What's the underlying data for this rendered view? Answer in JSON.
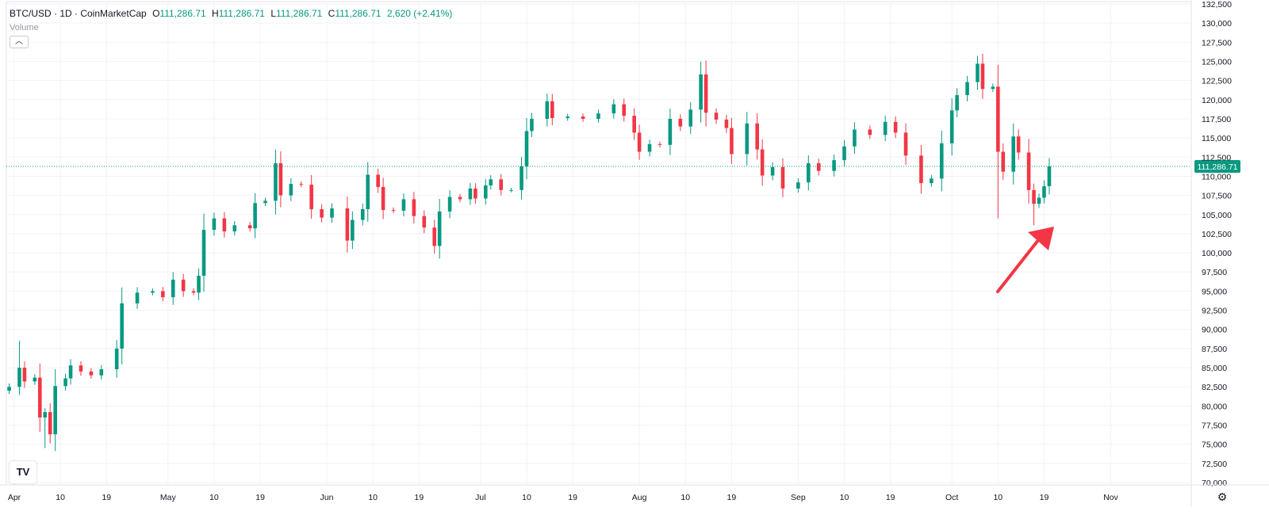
{
  "header": {
    "symbol": "BTC/USD · 1D · CoinMarketCap",
    "o_key": "O",
    "o_val": "111,286.71",
    "h_key": "H",
    "h_val": "111,286.71",
    "l_key": "L",
    "l_val": "111,286.71",
    "c_key": "C",
    "c_val": "111,286.71",
    "change": "2,620 (+2.41%)",
    "volume_label": "Volume",
    "collapse_icon": "chevron-up-icon"
  },
  "logo_text": "TV",
  "settings_icon": "gear-icon",
  "colors": {
    "up": "#089981",
    "down": "#f23645",
    "grid": "#f0f3fa",
    "axis_text": "#131722",
    "price_line": "#089981",
    "annotation": "#f23645"
  },
  "chart_data": {
    "type": "candlestick",
    "title": "BTC/USD · 1D · CoinMarketCap",
    "y_ticks": [
      70000,
      72500,
      75000,
      77500,
      80000,
      82500,
      85000,
      87500,
      90000,
      92500,
      95000,
      97500,
      100000,
      102500,
      105000,
      107500,
      110000,
      112500,
      115000,
      117500,
      120000,
      122500,
      125000,
      127500,
      130000,
      132500
    ],
    "y_tick_labels": [
      "70,000",
      "72,500",
      "75,000",
      "77,500",
      "80,000",
      "82,500",
      "85,000",
      "87,500",
      "90,000",
      "92,500",
      "95,000",
      "97,500",
      "100,000",
      "102,500",
      "105,000",
      "107,500",
      "110,000",
      "112,500",
      "115,000",
      "117,500",
      "120,000",
      "122,500",
      "125,000",
      "127,500",
      "130,000",
      "132,500"
    ],
    "x_ticks": [
      {
        "date": "2025-04-01",
        "label": "Apr"
      },
      {
        "date": "2025-04-10",
        "label": "10"
      },
      {
        "date": "2025-04-19",
        "label": "19"
      },
      {
        "date": "2025-05-01",
        "label": "May"
      },
      {
        "date": "2025-05-10",
        "label": "10"
      },
      {
        "date": "2025-05-19",
        "label": "19"
      },
      {
        "date": "2025-06-01",
        "label": "Jun"
      },
      {
        "date": "2025-06-10",
        "label": "10"
      },
      {
        "date": "2025-06-19",
        "label": "19"
      },
      {
        "date": "2025-07-01",
        "label": "Jul"
      },
      {
        "date": "2025-07-10",
        "label": "10"
      },
      {
        "date": "2025-07-19",
        "label": "19"
      },
      {
        "date": "2025-08-01",
        "label": "Aug"
      },
      {
        "date": "2025-08-10",
        "label": "10"
      },
      {
        "date": "2025-08-19",
        "label": "19"
      },
      {
        "date": "2025-09-01",
        "label": "Sep"
      },
      {
        "date": "2025-09-10",
        "label": "10"
      },
      {
        "date": "2025-09-19",
        "label": "19"
      },
      {
        "date": "2025-10-01",
        "label": "Oct"
      },
      {
        "date": "2025-10-10",
        "label": "10"
      },
      {
        "date": "2025-10-19",
        "label": "19"
      },
      {
        "date": "2025-11-01",
        "label": "Nov"
      }
    ],
    "last_price": 111286.71,
    "last_price_label": "111,286.71",
    "closes": [
      {
        "date": "2025-03-31",
        "close": 82500
      },
      {
        "date": "2025-04-02",
        "close": 85000
      },
      {
        "date": "2025-04-03",
        "close": 83200
      },
      {
        "date": "2025-04-05",
        "close": 83700
      },
      {
        "date": "2025-04-06",
        "close": 78500
      },
      {
        "date": "2025-04-07",
        "close": 79200
      },
      {
        "date": "2025-04-08",
        "close": 76300
      },
      {
        "date": "2025-04-09",
        "close": 82600
      },
      {
        "date": "2025-04-11",
        "close": 83600
      },
      {
        "date": "2025-04-12",
        "close": 85300
      },
      {
        "date": "2025-04-14",
        "close": 84500
      },
      {
        "date": "2025-04-16",
        "close": 84000
      },
      {
        "date": "2025-04-18",
        "close": 84800
      },
      {
        "date": "2025-04-21",
        "close": 87500
      },
      {
        "date": "2025-04-22",
        "close": 93400
      },
      {
        "date": "2025-04-25",
        "close": 94800
      },
      {
        "date": "2025-04-28",
        "close": 95000
      },
      {
        "date": "2025-04-30",
        "close": 94200
      },
      {
        "date": "2025-05-02",
        "close": 96500
      },
      {
        "date": "2025-05-04",
        "close": 95000
      },
      {
        "date": "2025-05-06",
        "close": 94800
      },
      {
        "date": "2025-05-07",
        "close": 97000
      },
      {
        "date": "2025-05-08",
        "close": 103000
      },
      {
        "date": "2025-05-10",
        "close": 104500
      },
      {
        "date": "2025-05-12",
        "close": 102800
      },
      {
        "date": "2025-05-14",
        "close": 103600
      },
      {
        "date": "2025-05-17",
        "close": 103200
      },
      {
        "date": "2025-05-18",
        "close": 106500
      },
      {
        "date": "2025-05-20",
        "close": 106800
      },
      {
        "date": "2025-05-22",
        "close": 111700
      },
      {
        "date": "2025-05-23",
        "close": 107500
      },
      {
        "date": "2025-05-25",
        "close": 109000
      },
      {
        "date": "2025-05-27",
        "close": 108900
      },
      {
        "date": "2025-05-29",
        "close": 105700
      },
      {
        "date": "2025-05-31",
        "close": 104600
      },
      {
        "date": "2025-06-02",
        "close": 105800
      },
      {
        "date": "2025-06-05",
        "close": 101600
      },
      {
        "date": "2025-06-06",
        "close": 104300
      },
      {
        "date": "2025-06-08",
        "close": 105700
      },
      {
        "date": "2025-06-09",
        "close": 110200
      },
      {
        "date": "2025-06-11",
        "close": 108600
      },
      {
        "date": "2025-06-12",
        "close": 105600
      },
      {
        "date": "2025-06-14",
        "close": 105500
      },
      {
        "date": "2025-06-16",
        "close": 107000
      },
      {
        "date": "2025-06-18",
        "close": 104800
      },
      {
        "date": "2025-06-20",
        "close": 103300
      },
      {
        "date": "2025-06-22",
        "close": 100900
      },
      {
        "date": "2025-06-23",
        "close": 105400
      },
      {
        "date": "2025-06-25",
        "close": 107300
      },
      {
        "date": "2025-06-27",
        "close": 107000
      },
      {
        "date": "2025-06-29",
        "close": 108400
      },
      {
        "date": "2025-06-30",
        "close": 107100
      },
      {
        "date": "2025-07-02",
        "close": 108800
      },
      {
        "date": "2025-07-03",
        "close": 109600
      },
      {
        "date": "2025-07-05",
        "close": 108200
      },
      {
        "date": "2025-07-07",
        "close": 108200
      },
      {
        "date": "2025-07-09",
        "close": 111300
      },
      {
        "date": "2025-07-10",
        "close": 115900
      },
      {
        "date": "2025-07-11",
        "close": 117500
      },
      {
        "date": "2025-07-14",
        "close": 119800
      },
      {
        "date": "2025-07-15",
        "close": 117600
      },
      {
        "date": "2025-07-18",
        "close": 117800
      },
      {
        "date": "2025-07-21",
        "close": 117500
      },
      {
        "date": "2025-07-24",
        "close": 118200
      },
      {
        "date": "2025-07-27",
        "close": 119400
      },
      {
        "date": "2025-07-29",
        "close": 117900
      },
      {
        "date": "2025-07-31",
        "close": 115700
      },
      {
        "date": "2025-08-01",
        "close": 113200
      },
      {
        "date": "2025-08-03",
        "close": 114200
      },
      {
        "date": "2025-08-05",
        "close": 114100
      },
      {
        "date": "2025-08-07",
        "close": 117500
      },
      {
        "date": "2025-08-09",
        "close": 116500
      },
      {
        "date": "2025-08-11",
        "close": 118700
      },
      {
        "date": "2025-08-13",
        "close": 123300
      },
      {
        "date": "2025-08-14",
        "close": 118300
      },
      {
        "date": "2025-08-16",
        "close": 117400
      },
      {
        "date": "2025-08-18",
        "close": 116300
      },
      {
        "date": "2025-08-19",
        "close": 112900
      },
      {
        "date": "2025-08-22",
        "close": 116900
      },
      {
        "date": "2025-08-24",
        "close": 113500
      },
      {
        "date": "2025-08-25",
        "close": 110100
      },
      {
        "date": "2025-08-27",
        "close": 111200
      },
      {
        "date": "2025-08-29",
        "close": 108400
      },
      {
        "date": "2025-09-01",
        "close": 109200
      },
      {
        "date": "2025-09-03",
        "close": 111700
      },
      {
        "date": "2025-09-05",
        "close": 110700
      },
      {
        "date": "2025-09-08",
        "close": 112100
      },
      {
        "date": "2025-09-10",
        "close": 113900
      },
      {
        "date": "2025-09-12",
        "close": 116100
      },
      {
        "date": "2025-09-15",
        "close": 115400
      },
      {
        "date": "2025-09-18",
        "close": 117100
      },
      {
        "date": "2025-09-20",
        "close": 115700
      },
      {
        "date": "2025-09-22",
        "close": 112700
      },
      {
        "date": "2025-09-25",
        "close": 109100
      },
      {
        "date": "2025-09-27",
        "close": 109700
      },
      {
        "date": "2025-09-29",
        "close": 114300
      },
      {
        "date": "2025-10-01",
        "close": 118600
      },
      {
        "date": "2025-10-02",
        "close": 120600
      },
      {
        "date": "2025-10-04",
        "close": 122300
      },
      {
        "date": "2025-10-06",
        "close": 124700
      },
      {
        "date": "2025-10-07",
        "close": 121400
      },
      {
        "date": "2025-10-09",
        "close": 121700
      },
      {
        "date": "2025-10-10",
        "close": 113200
      },
      {
        "date": "2025-10-11",
        "close": 110600
      },
      {
        "date": "2025-10-13",
        "close": 115200
      },
      {
        "date": "2025-10-14",
        "close": 113100
      },
      {
        "date": "2025-10-16",
        "close": 108200
      },
      {
        "date": "2025-10-17",
        "close": 106400
      },
      {
        "date": "2025-10-18",
        "close": 107200
      },
      {
        "date": "2025-10-19",
        "close": 108700
      },
      {
        "date": "2025-10-20",
        "close": 111286.71
      }
    ],
    "annotation": {
      "type": "arrow",
      "points_to_date": "2025-10-10",
      "points_to_price": 104500
    }
  }
}
